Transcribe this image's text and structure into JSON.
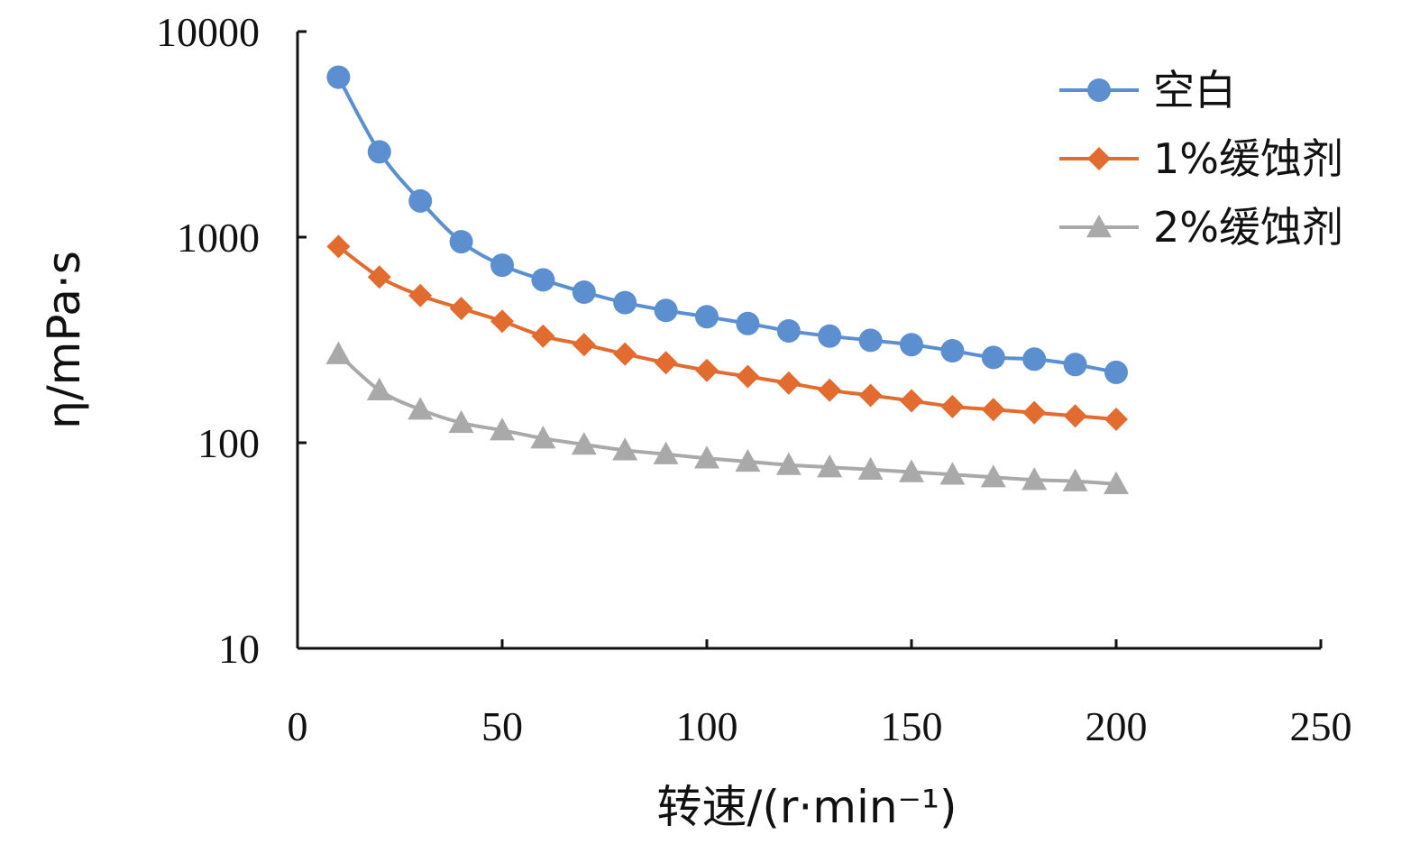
{
  "chart_data": {
    "type": "line",
    "title": "",
    "xlabel": "转速/(r·min⁻¹)",
    "ylabel": "η/mPa·s",
    "xlim": [
      0,
      250
    ],
    "ylim": [
      10,
      10000
    ],
    "yscale": "log",
    "x_ticks": [
      0,
      50,
      100,
      150,
      200,
      250
    ],
    "y_ticks": [
      10,
      100,
      1000,
      10000
    ],
    "grid": false,
    "legend_position": "top-right",
    "x": [
      10,
      20,
      30,
      40,
      50,
      60,
      70,
      80,
      90,
      100,
      110,
      120,
      130,
      140,
      150,
      160,
      170,
      180,
      190,
      200
    ],
    "series": [
      {
        "name": "空白",
        "color": "#5B8FCF",
        "marker": "circle",
        "values": [
          6000,
          2600,
          1500,
          950,
          730,
          620,
          540,
          480,
          440,
          410,
          380,
          350,
          330,
          315,
          300,
          280,
          260,
          255,
          240,
          220
        ]
      },
      {
        "name": "1%缓蚀剂",
        "color": "#E26B2F",
        "marker": "diamond",
        "values": [
          900,
          640,
          520,
          450,
          390,
          330,
          300,
          270,
          245,
          225,
          210,
          195,
          180,
          170,
          160,
          150,
          145,
          140,
          135,
          130
        ]
      },
      {
        "name": "2%缓蚀剂",
        "color": "#A9A9A9",
        "marker": "triangle",
        "values": [
          270,
          180,
          145,
          125,
          115,
          105,
          98,
          92,
          88,
          84,
          81,
          78,
          76,
          74,
          72,
          70,
          68,
          66,
          65,
          63
        ]
      }
    ]
  }
}
